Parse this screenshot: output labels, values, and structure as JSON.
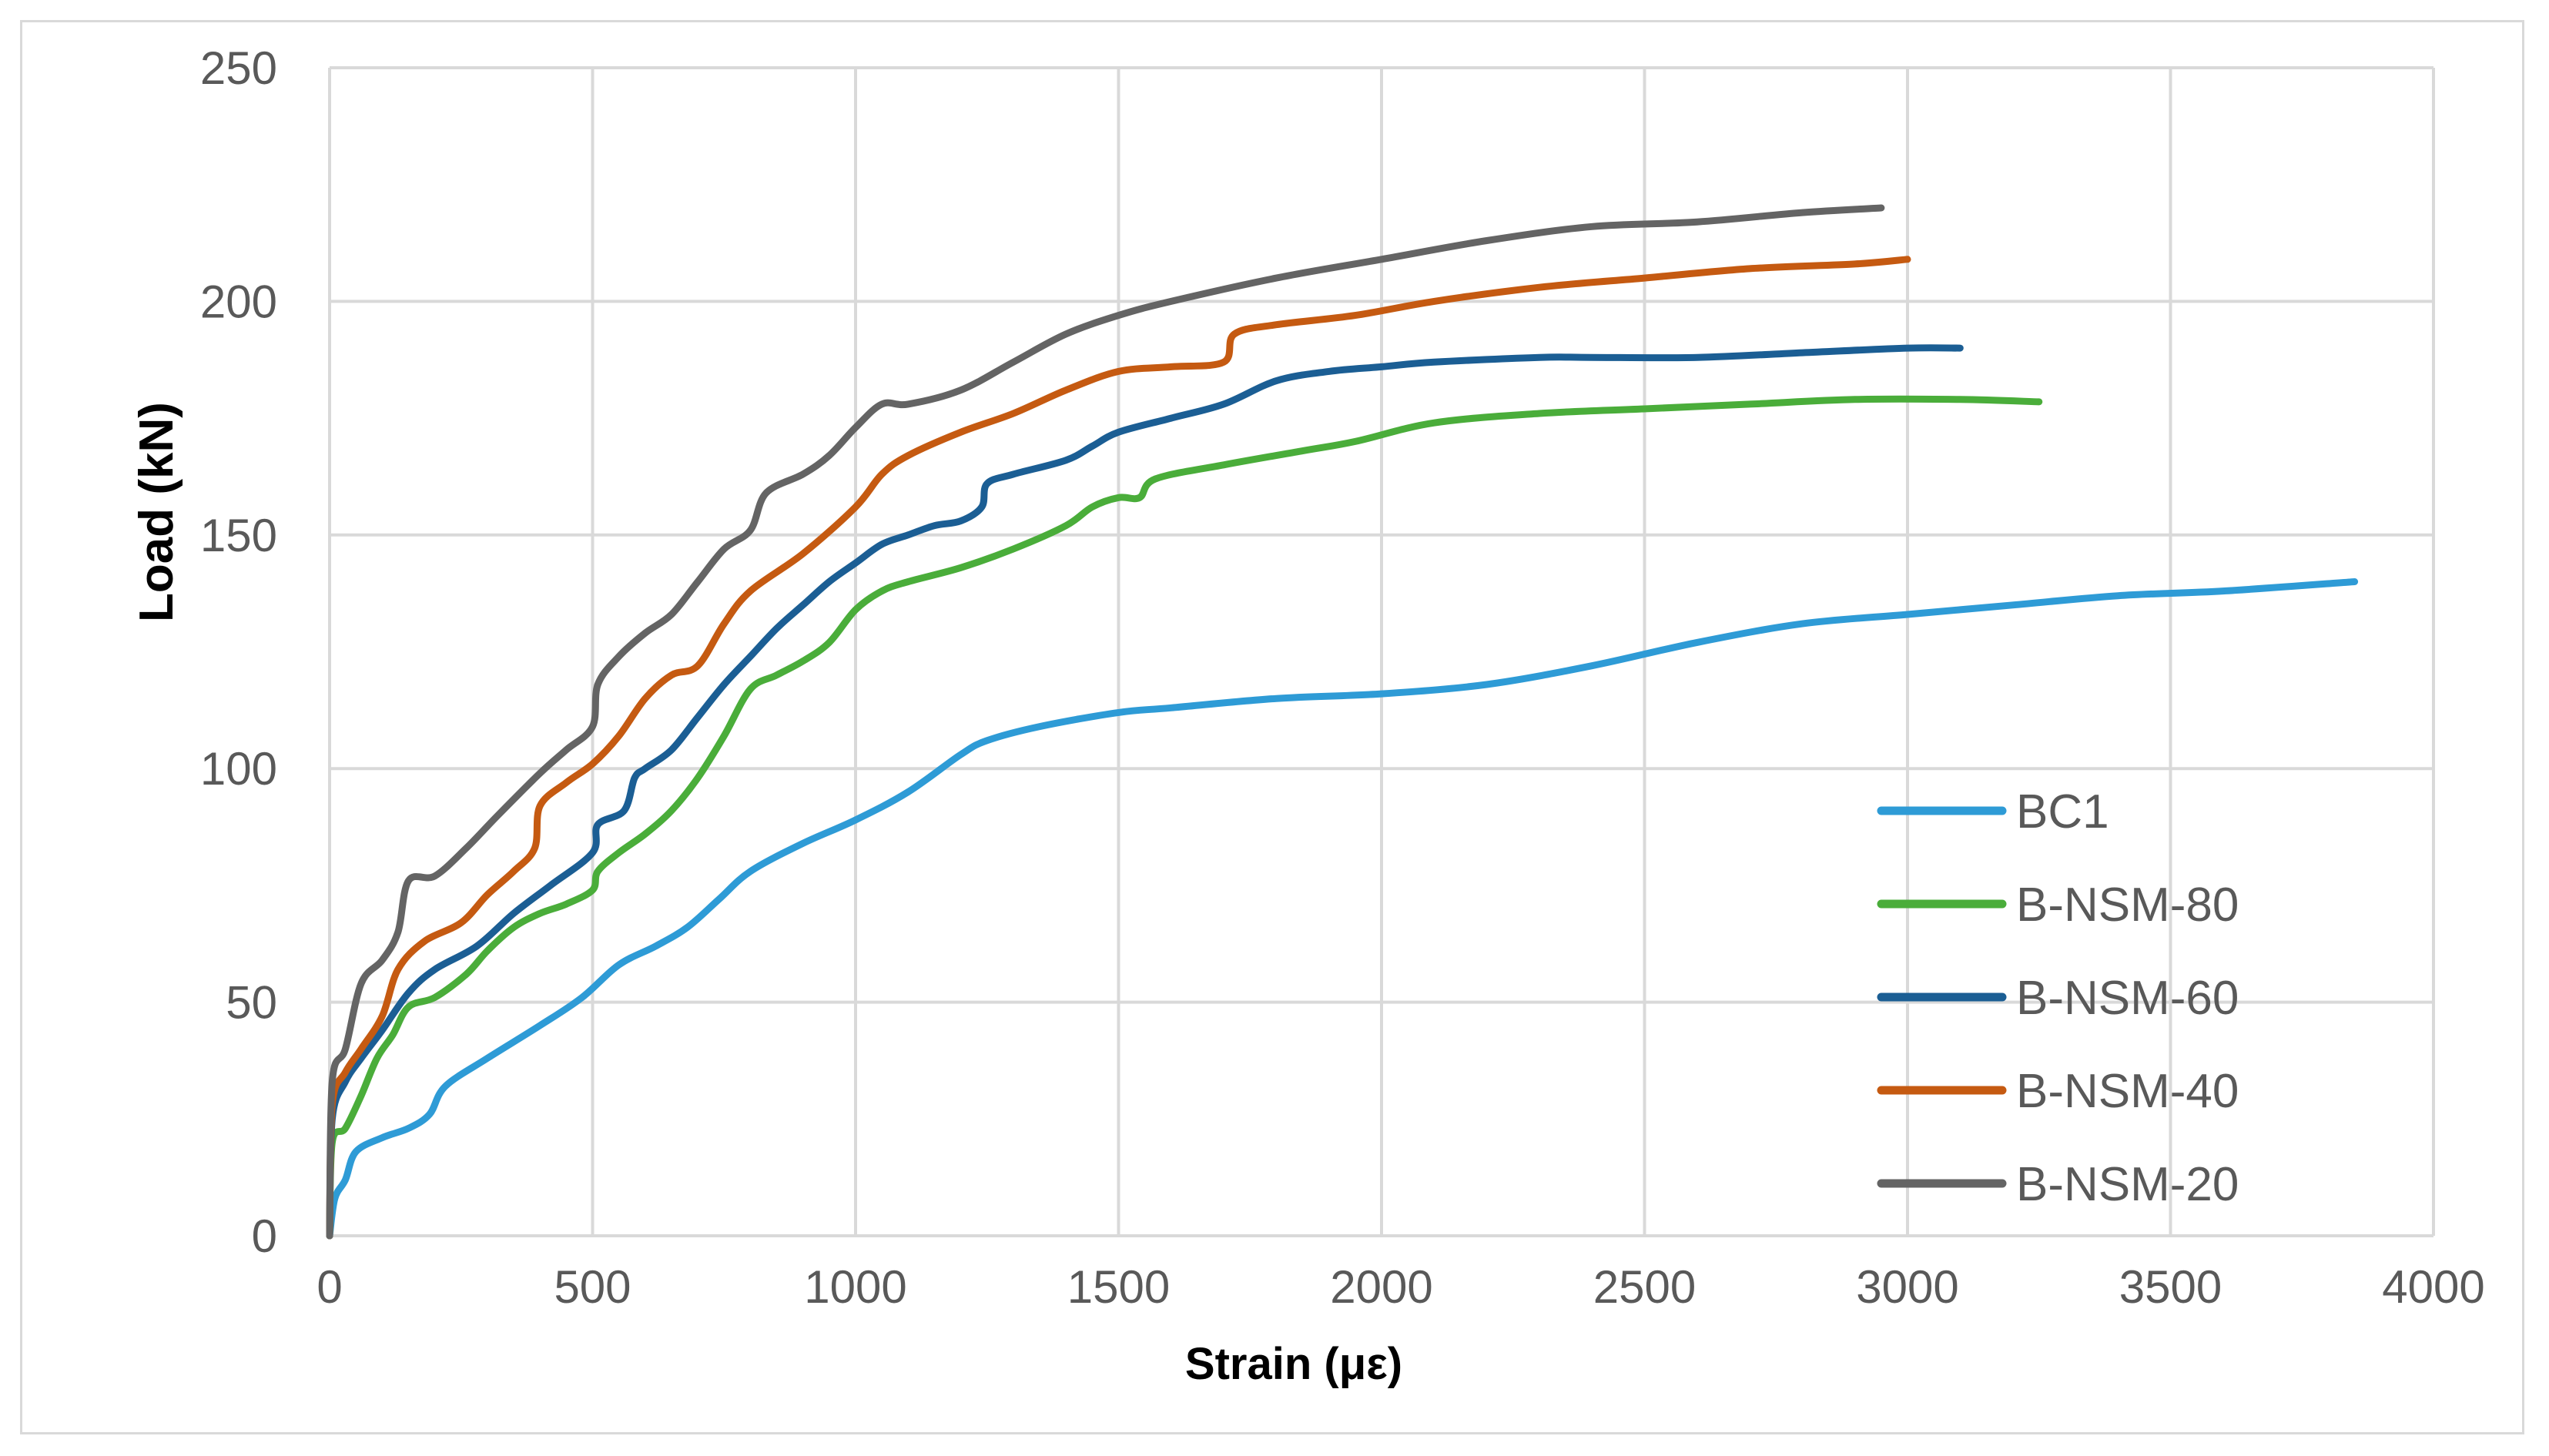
{
  "chart_data": {
    "type": "line",
    "title": "",
    "xlabel": "Strain (με)",
    "ylabel": "Load (kN)",
    "xlim": [
      0,
      4000
    ],
    "ylim": [
      0,
      250
    ],
    "xticks": [
      0,
      500,
      1000,
      1500,
      2000,
      2500,
      3000,
      3500,
      4000
    ],
    "yticks": [
      0,
      50,
      100,
      150,
      200,
      250
    ],
    "grid": true,
    "legend_position": "right",
    "series": [
      {
        "name": "BC1",
        "color": "#2e9bd6",
        "points": [
          [
            0,
            0
          ],
          [
            10,
            8
          ],
          [
            30,
            12
          ],
          [
            50,
            18
          ],
          [
            100,
            21
          ],
          [
            150,
            23
          ],
          [
            190,
            26
          ],
          [
            220,
            32
          ],
          [
            300,
            38
          ],
          [
            400,
            45
          ],
          [
            480,
            51
          ],
          [
            550,
            58
          ],
          [
            620,
            62
          ],
          [
            680,
            66
          ],
          [
            740,
            72
          ],
          [
            800,
            78
          ],
          [
            900,
            84
          ],
          [
            1000,
            89
          ],
          [
            1100,
            95
          ],
          [
            1200,
            103
          ],
          [
            1250,
            106
          ],
          [
            1350,
            109
          ],
          [
            1500,
            112
          ],
          [
            1600,
            113
          ],
          [
            1800,
            115
          ],
          [
            2000,
            116
          ],
          [
            2200,
            118
          ],
          [
            2400,
            122
          ],
          [
            2600,
            127
          ],
          [
            2800,
            131
          ],
          [
            3000,
            133
          ],
          [
            3200,
            135
          ],
          [
            3400,
            137
          ],
          [
            3600,
            138
          ],
          [
            3850,
            140
          ]
        ]
      },
      {
        "name": "B-NSM-80",
        "color": "#4aad3a",
        "points": [
          [
            0,
            0
          ],
          [
            5,
            20
          ],
          [
            30,
            23
          ],
          [
            60,
            30
          ],
          [
            90,
            38
          ],
          [
            120,
            43
          ],
          [
            150,
            49
          ],
          [
            200,
            51
          ],
          [
            260,
            56
          ],
          [
            300,
            61
          ],
          [
            350,
            66
          ],
          [
            400,
            69
          ],
          [
            450,
            71
          ],
          [
            500,
            74
          ],
          [
            510,
            78
          ],
          [
            550,
            82
          ],
          [
            600,
            86
          ],
          [
            650,
            91
          ],
          [
            700,
            98
          ],
          [
            750,
            107
          ],
          [
            800,
            117
          ],
          [
            850,
            120
          ],
          [
            900,
            123
          ],
          [
            950,
            127
          ],
          [
            1000,
            134
          ],
          [
            1050,
            138
          ],
          [
            1100,
            140
          ],
          [
            1200,
            143
          ],
          [
            1300,
            147
          ],
          [
            1400,
            152
          ],
          [
            1450,
            156
          ],
          [
            1500,
            158
          ],
          [
            1540,
            158
          ],
          [
            1570,
            162
          ],
          [
            1700,
            165
          ],
          [
            1850,
            168
          ],
          [
            1950,
            170
          ],
          [
            2100,
            174
          ],
          [
            2300,
            176
          ],
          [
            2500,
            177
          ],
          [
            2700,
            178
          ],
          [
            2900,
            179
          ],
          [
            3100,
            179
          ],
          [
            3250,
            178.5
          ]
        ]
      },
      {
        "name": "B-NSM-60",
        "color": "#1b5e94",
        "points": [
          [
            0,
            0
          ],
          [
            5,
            25
          ],
          [
            30,
            33
          ],
          [
            60,
            38
          ],
          [
            100,
            44
          ],
          [
            150,
            52
          ],
          [
            200,
            57
          ],
          [
            280,
            62
          ],
          [
            350,
            69
          ],
          [
            420,
            75
          ],
          [
            500,
            82
          ],
          [
            510,
            88
          ],
          [
            560,
            91
          ],
          [
            580,
            98
          ],
          [
            600,
            100
          ],
          [
            650,
            104
          ],
          [
            700,
            111
          ],
          [
            750,
            118
          ],
          [
            800,
            124
          ],
          [
            850,
            130
          ],
          [
            900,
            135
          ],
          [
            950,
            140
          ],
          [
            1000,
            144
          ],
          [
            1050,
            148
          ],
          [
            1100,
            150
          ],
          [
            1150,
            152
          ],
          [
            1200,
            153
          ],
          [
            1240,
            156
          ],
          [
            1250,
            161
          ],
          [
            1300,
            163
          ],
          [
            1400,
            166
          ],
          [
            1450,
            169
          ],
          [
            1500,
            172
          ],
          [
            1600,
            175
          ],
          [
            1700,
            178
          ],
          [
            1800,
            183
          ],
          [
            1900,
            185
          ],
          [
            2000,
            186
          ],
          [
            2100,
            187
          ],
          [
            2300,
            188
          ],
          [
            2400,
            188
          ],
          [
            2600,
            188
          ],
          [
            2800,
            189
          ],
          [
            3000,
            190
          ],
          [
            3100,
            190
          ]
        ]
      },
      {
        "name": "B-NSM-40",
        "color": "#c55a11",
        "points": [
          [
            0,
            0
          ],
          [
            5,
            28
          ],
          [
            30,
            35
          ],
          [
            60,
            40
          ],
          [
            100,
            47
          ],
          [
            130,
            57
          ],
          [
            180,
            63
          ],
          [
            250,
            67
          ],
          [
            300,
            73
          ],
          [
            350,
            78
          ],
          [
            390,
            83
          ],
          [
            400,
            92
          ],
          [
            450,
            97
          ],
          [
            500,
            101
          ],
          [
            550,
            107
          ],
          [
            600,
            115
          ],
          [
            650,
            120
          ],
          [
            700,
            122
          ],
          [
            750,
            131
          ],
          [
            800,
            138
          ],
          [
            900,
            146
          ],
          [
            1000,
            156
          ],
          [
            1050,
            163
          ],
          [
            1100,
            167
          ],
          [
            1200,
            172
          ],
          [
            1300,
            176
          ],
          [
            1400,
            181
          ],
          [
            1500,
            185
          ],
          [
            1600,
            186
          ],
          [
            1700,
            187
          ],
          [
            1720,
            193
          ],
          [
            1800,
            195
          ],
          [
            1950,
            197
          ],
          [
            2100,
            200
          ],
          [
            2300,
            203
          ],
          [
            2500,
            205
          ],
          [
            2700,
            207
          ],
          [
            2900,
            208
          ],
          [
            3000,
            209
          ]
        ]
      },
      {
        "name": "B-NSM-20",
        "color": "#646464",
        "points": [
          [
            0,
            0
          ],
          [
            5,
            33
          ],
          [
            30,
            40
          ],
          [
            60,
            54
          ],
          [
            100,
            59
          ],
          [
            130,
            65
          ],
          [
            150,
            76
          ],
          [
            200,
            77
          ],
          [
            260,
            83
          ],
          [
            320,
            90
          ],
          [
            400,
            99
          ],
          [
            450,
            104
          ],
          [
            500,
            109
          ],
          [
            510,
            118
          ],
          [
            550,
            124
          ],
          [
            600,
            129
          ],
          [
            650,
            133
          ],
          [
            700,
            140
          ],
          [
            750,
            147
          ],
          [
            800,
            151
          ],
          [
            830,
            159
          ],
          [
            900,
            163
          ],
          [
            950,
            167
          ],
          [
            1000,
            173
          ],
          [
            1050,
            178
          ],
          [
            1100,
            178
          ],
          [
            1200,
            181
          ],
          [
            1300,
            187
          ],
          [
            1400,
            193
          ],
          [
            1500,
            197
          ],
          [
            1600,
            200
          ],
          [
            1800,
            205
          ],
          [
            2000,
            209
          ],
          [
            2200,
            213
          ],
          [
            2400,
            216
          ],
          [
            2600,
            217
          ],
          [
            2800,
            219
          ],
          [
            2950,
            220
          ]
        ]
      }
    ]
  }
}
